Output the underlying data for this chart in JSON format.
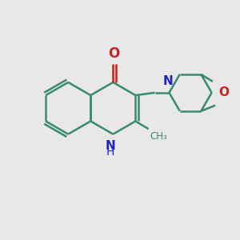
{
  "background_color": "#e8e8e8",
  "bond_color": "#3a8a70",
  "N_color": "#2020cc",
  "O_color": "#cc2020",
  "bond_width": 1.8,
  "font_size": 10,
  "figsize": [
    3.0,
    3.0
  ],
  "dpi": 100,
  "xlim": [
    0,
    10
  ],
  "ylim": [
    0,
    10
  ]
}
